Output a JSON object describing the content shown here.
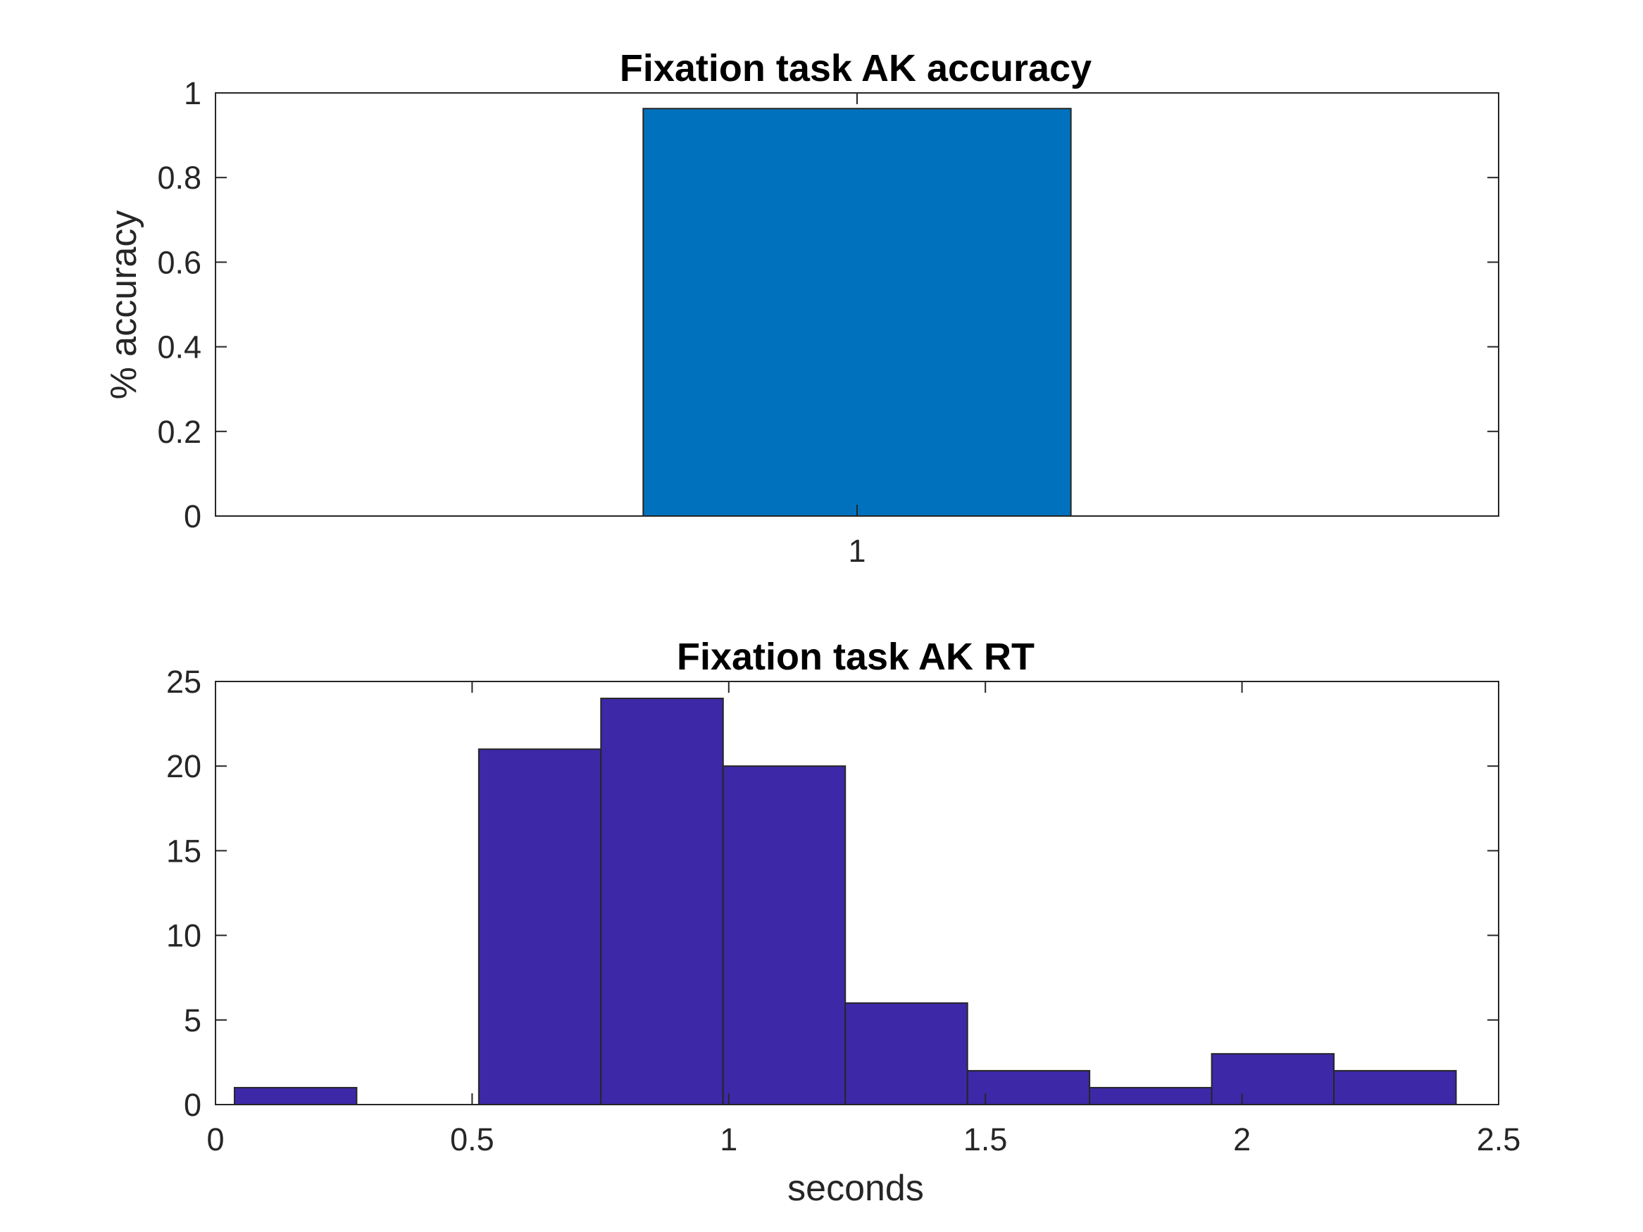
{
  "chart_data": [
    {
      "type": "bar",
      "title": "Fixation task AK accuracy",
      "xlabel": "",
      "ylabel": "% accuracy",
      "categories": [
        "1"
      ],
      "values": [
        0.963
      ],
      "ylim": [
        0,
        1
      ],
      "yticks": [
        0,
        0.2,
        0.4,
        0.6,
        0.8,
        1
      ],
      "ytick_labels": [
        "0",
        "0.2",
        "0.4",
        "0.6",
        "0.8",
        "1"
      ],
      "bar_color": "#0072BD",
      "grid": false
    },
    {
      "type": "bar",
      "subtype": "histogram",
      "title": "Fixation task AK RT",
      "xlabel": "seconds",
      "ylabel": "",
      "bin_edges": [
        0.037,
        0.275,
        0.513,
        0.751,
        0.989,
        1.227,
        1.465,
        1.703,
        1.941,
        2.179,
        2.417
      ],
      "values": [
        1,
        0,
        21,
        24,
        20,
        6,
        2,
        1,
        3,
        2
      ],
      "xlim": [
        0,
        2.5
      ],
      "ylim": [
        0,
        25
      ],
      "xticks": [
        0,
        0.5,
        1,
        1.5,
        2,
        2.5
      ],
      "xtick_labels": [
        "0",
        "0.5",
        "1",
        "1.5",
        "2",
        "2.5"
      ],
      "yticks": [
        0,
        5,
        10,
        15,
        20,
        25
      ],
      "ytick_labels": [
        "0",
        "5",
        "10",
        "15",
        "20",
        "25"
      ],
      "bar_color": "#3D28A8",
      "grid": false
    }
  ]
}
